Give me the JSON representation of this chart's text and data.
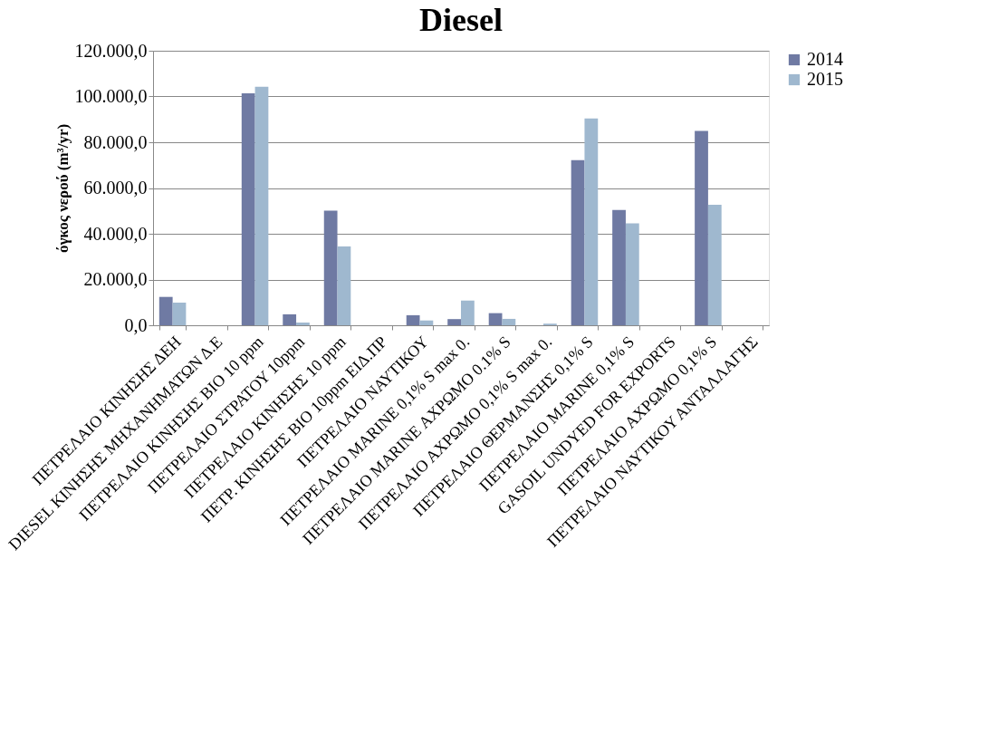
{
  "chart_data": {
    "type": "bar",
    "title": "Diesel",
    "ylabel": "όγκος νερού (m³/yr)",
    "categories": [
      "ΠΕΤΡΕΛΑΙΟ ΚΙΝΗΣΗΣ ΔΕΗ",
      "DIESEL ΚΙΝΗΣΗΣ ΜΗΧΑΝΗΜΑΤΩΝ Δ.Ε",
      "ΠΕΤΡΕΛΑΙΟ ΚΙΝΗΣΗΣ ΒΙΟ 10  ppm",
      "ΠΕΤΡΕΛΑΙΟ ΣΤΡΑΤΟΥ 10ppm",
      "ΠΕΤΡΕΛΑΙΟ ΚΙΝΗΣΗΣ 10 ppm",
      "ΠΕΤΡ. ΚΙΝΗΣΗΣ ΒΙΟ 10ppm ΕΙΔ.ΠΡ",
      "ΠΕΤΡΕΛΑΙΟ ΝΑΥΤΙΚΟΥ",
      "ΠΕΤΡΕΛΑΙΟ MARINE 0,1% S max 0.",
      "ΠΕΤΡΕΛΑΙΟ MARINE ΑΧΡΩΜΟ 0.1% S",
      "ΠΕΤΡΕΛΑΙΟ ΑΧΡΩΜΟ 0,1% S max 0.",
      "ΠΕΤΡΕΛΑΙΟ ΘΕΡΜΑΝΣΗΣ 0,1% S",
      "ΠΕΤΡΕΛΑΙΟ MARINE 0,1% S",
      "GASOIL UNDYED FOR EXPORTS",
      "ΠΕΤΡΕΛΑΙΟ ΑΧΡΩΜΟ 0,1% S",
      "ΠΕΤΡΕΛΑΙΟ ΝΑΥΤΙΚΟΥ ΑΝΤΑΛΛΑΓΗΣ"
    ],
    "series": [
      {
        "name": "2014",
        "color": "#6f7aa3",
        "values": [
          12400,
          null,
          101400,
          4800,
          50100,
          null,
          4400,
          2700,
          5300,
          null,
          72200,
          50400,
          null,
          85000,
          null
        ]
      },
      {
        "name": "2015",
        "color": "#9fb8cf",
        "values": [
          9900,
          null,
          104300,
          1200,
          34500,
          null,
          2100,
          10800,
          2800,
          700,
          90400,
          44600,
          null,
          52700,
          null
        ]
      }
    ],
    "ylim": [
      0,
      120000
    ],
    "yticks": [
      {
        "value": 0,
        "label": "0,0"
      },
      {
        "value": 20000,
        "label": "20.000,0"
      },
      {
        "value": 40000,
        "label": "40.000,0"
      },
      {
        "value": 60000,
        "label": "60.000,0"
      },
      {
        "value": 80000,
        "label": "80.000,0"
      },
      {
        "value": 100000,
        "label": "100.000,0"
      },
      {
        "value": 120000,
        "label": "120.000,0"
      }
    ],
    "grid": "y",
    "legend": "right"
  }
}
